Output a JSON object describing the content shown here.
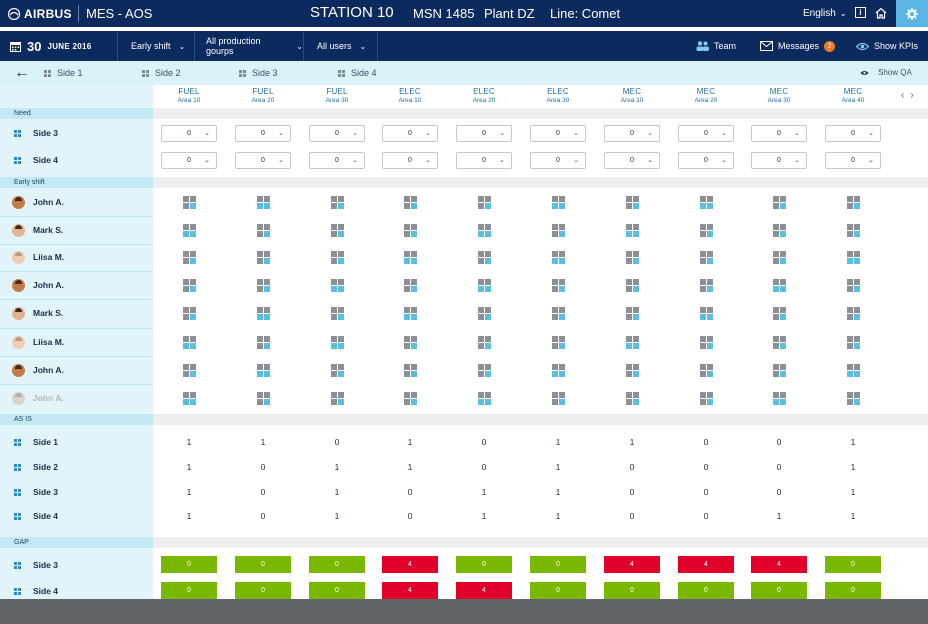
{
  "header": {
    "logo": "AIRBUS",
    "app_name": "MES - AOS",
    "station": "STATION 10",
    "msn": "MSN 1485",
    "plant": "Plant DZ",
    "line": "Line: Comet",
    "language": "English"
  },
  "filters": {
    "date_day": "30",
    "date_month": "JUNE 2016",
    "shift": "Early shift",
    "production_groups": "All production gourps",
    "users": "All users",
    "team": "Team",
    "messages": "Messages",
    "messages_count": "2",
    "show_kpis": "Show KPIs"
  },
  "sides_bar": {
    "tabs": [
      "Side 1",
      "Side 2",
      "Side 3",
      "Side 4"
    ],
    "show_qa": "Show QA"
  },
  "columns": [
    {
      "type": "FUEL",
      "area": "Area 10"
    },
    {
      "type": "FUEL",
      "area": "Area 20"
    },
    {
      "type": "FUEL",
      "area": "Area 30"
    },
    {
      "type": "ELEC",
      "area": "Area 10"
    },
    {
      "type": "ELEC",
      "area": "Area 20"
    },
    {
      "type": "ELEC",
      "area": "Area 30"
    },
    {
      "type": "MEC",
      "area": "Area 10"
    },
    {
      "type": "MEC",
      "area": "Area 20"
    },
    {
      "type": "MEC",
      "area": "Area 30"
    },
    {
      "type": "MEC",
      "area": "Area 40"
    }
  ],
  "need": {
    "title": "Need",
    "rows": [
      {
        "label": "Side 3",
        "values": [
          "0",
          "0",
          "0",
          "0",
          "0",
          "0",
          "0",
          "0",
          "0",
          "0"
        ]
      },
      {
        "label": "Side 4",
        "values": [
          "0",
          "0",
          "0",
          "0",
          "0",
          "0",
          "0",
          "0",
          "0",
          "0"
        ]
      }
    ]
  },
  "early_shift": {
    "title": "Early shift",
    "people": [
      {
        "name": "John A.",
        "avatar": "dark",
        "faded": false
      },
      {
        "name": "Mark S.",
        "avatar": "light",
        "faded": false
      },
      {
        "name": "Liisa M.",
        "avatar": "pale",
        "faded": false
      },
      {
        "name": "John A.",
        "avatar": "dark",
        "faded": false
      },
      {
        "name": "Mark S.",
        "avatar": "light",
        "faded": false
      },
      {
        "name": "Liisa M.",
        "avatar": "pale",
        "faded": false
      },
      {
        "name": "John A.",
        "avatar": "dark",
        "faded": false
      },
      {
        "name": "John A.",
        "avatar": "faded",
        "faded": true
      }
    ]
  },
  "as_is": {
    "title": "AS IS",
    "rows": [
      {
        "label": "Side 1",
        "values": [
          "1",
          "1",
          "0",
          "1",
          "0",
          "1",
          "1",
          "0",
          "0",
          "1"
        ]
      },
      {
        "label": "Side 2",
        "values": [
          "1",
          "0",
          "1",
          "1",
          "0",
          "1",
          "0",
          "0",
          "0",
          "1"
        ]
      },
      {
        "label": "Side 3",
        "values": [
          "1",
          "0",
          "1",
          "0",
          "1",
          "1",
          "0",
          "0",
          "0",
          "1"
        ]
      },
      {
        "label": "Side 4",
        "values": [
          "1",
          "0",
          "1",
          "0",
          "1",
          "1",
          "0",
          "0",
          "1",
          "1"
        ]
      }
    ]
  },
  "gap": {
    "title": "GAP",
    "rows": [
      {
        "label": "Side 3",
        "values": [
          "0",
          "0",
          "0",
          "4",
          "0",
          "0",
          "4",
          "4",
          "4",
          "0"
        ]
      },
      {
        "label": "Side 4",
        "values": [
          "0",
          "0",
          "0",
          "4",
          "4",
          "0",
          "0",
          "0",
          "0",
          "0"
        ]
      }
    ]
  },
  "colors": {
    "nav_bg": "#0d2a5e",
    "accent": "#5ab4e5",
    "gap_ok": "#7ab800",
    "gap_bad": "#e2002a"
  }
}
